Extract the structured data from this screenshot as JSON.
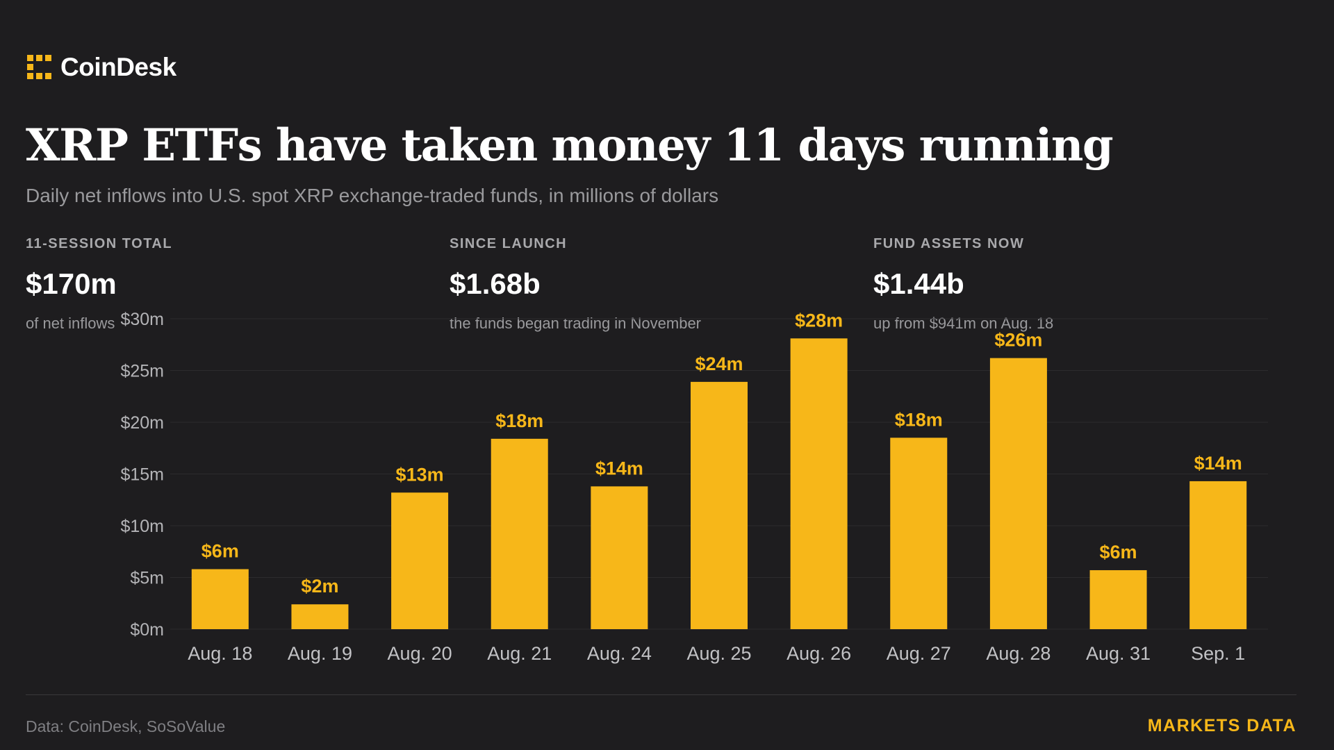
{
  "brand": {
    "name": "CoinDesk",
    "logo_icon": "coindesk-logo-icon",
    "accent": "#f7b719"
  },
  "header": {
    "title": "XRP ETFs have taken money 11 days running",
    "subtitle": "Daily net inflows into U.S. spot XRP exchange-traded funds, in millions of dollars"
  },
  "stats": [
    {
      "label": "11-SESSION TOTAL",
      "value": "$170m",
      "note": "of net inflows"
    },
    {
      "label": "SINCE LAUNCH",
      "value": "$1.68b",
      "note": "the funds began trading in November"
    },
    {
      "label": "FUND ASSETS NOW",
      "value": "$1.44b",
      "note": "up from $941m on Aug. 18"
    }
  ],
  "chart_data": {
    "type": "bar",
    "categories": [
      "Aug. 18",
      "Aug. 19",
      "Aug. 20",
      "Aug. 21",
      "Aug. 24",
      "Aug. 25",
      "Aug. 26",
      "Aug. 27",
      "Aug. 28",
      "Aug. 31",
      "Sep. 1"
    ],
    "values": [
      5.8,
      2.4,
      13.2,
      18.4,
      13.8,
      23.9,
      28.1,
      18.5,
      26.2,
      5.7,
      14.3
    ],
    "value_labels": [
      "$6m",
      "$2m",
      "$13m",
      "$18m",
      "$14m",
      "$24m",
      "$28m",
      "$18m",
      "$26m",
      "$6m",
      "$14m"
    ],
    "y_ticks": [
      0,
      5,
      10,
      15,
      20,
      25,
      30
    ],
    "y_tick_labels": [
      "$0m",
      "$5m",
      "$10m",
      "$15m",
      "$20m",
      "$25m",
      "$30m"
    ],
    "ylim": [
      0,
      30
    ],
    "grid": true,
    "bar_color": "#f7b719"
  },
  "footer": {
    "source": "Data: CoinDesk, SoSoValue",
    "tag": "MARKETS DATA"
  }
}
